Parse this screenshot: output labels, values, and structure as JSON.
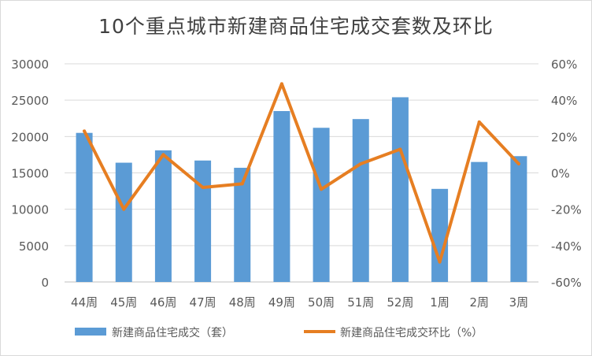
{
  "chart_data": {
    "type": "bar",
    "title": "10个重点城市新建商品住宅成交套数及环比",
    "categories": [
      "44周",
      "45周",
      "46周",
      "47周",
      "48周",
      "49周",
      "50周",
      "51周",
      "52周",
      "1周",
      "2周",
      "3周"
    ],
    "series": [
      {
        "name": "新建商品住宅成交（套）",
        "type": "bar",
        "axis": "left",
        "color": "#5b9bd5",
        "values": [
          20500,
          16400,
          18100,
          16700,
          15700,
          23500,
          21200,
          22400,
          25400,
          12800,
          16500,
          17300
        ]
      },
      {
        "name": "新建商品住宅成交环比（%）",
        "type": "line",
        "axis": "right",
        "color": "#e67e22",
        "values": [
          23,
          -20,
          10,
          -8,
          -6,
          49,
          -9,
          5,
          13,
          -49,
          28,
          5
        ]
      }
    ],
    "left_axis": {
      "ylim": [
        0,
        30000
      ],
      "ticks": [
        "0",
        "5000",
        "10000",
        "15000",
        "20000",
        "25000",
        "30000"
      ]
    },
    "right_axis": {
      "ylim": [
        -60,
        60
      ],
      "ticks": [
        "-60%",
        "-40%",
        "-20%",
        "0%",
        "20%",
        "40%",
        "60%"
      ]
    },
    "grid": true,
    "legend": "bottom"
  }
}
